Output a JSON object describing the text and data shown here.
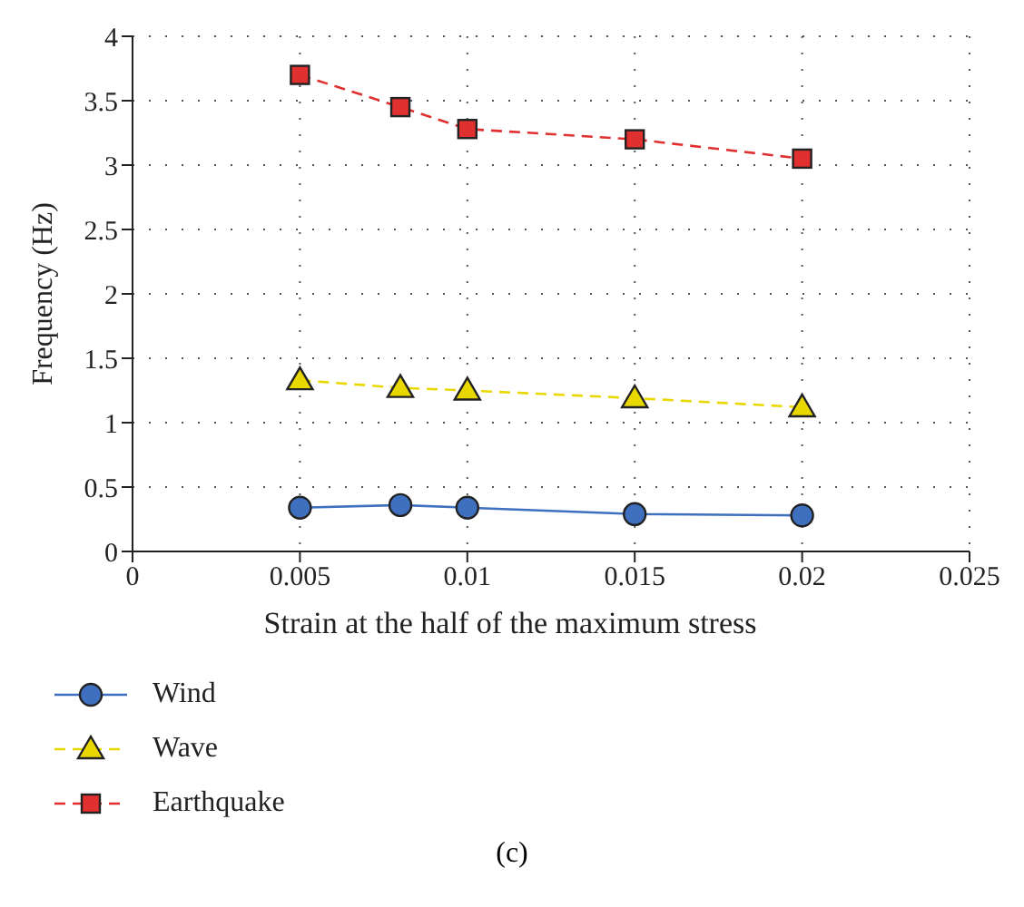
{
  "chart_data": {
    "type": "line",
    "xlabel": "Strain at the half of the maximum stress",
    "ylabel": "Frequency (Hz)",
    "x": [
      0.005,
      0.008,
      0.01,
      0.015,
      0.02
    ],
    "series": [
      {
        "name": "Wind",
        "color": "#3f6fbf",
        "marker": "circle",
        "line_style": "solid",
        "values": [
          0.34,
          0.36,
          0.34,
          0.29,
          0.28
        ]
      },
      {
        "name": "Wave",
        "color": "#e8d800",
        "marker": "triangle",
        "line_style": "dashed",
        "values": [
          1.33,
          1.27,
          1.25,
          1.19,
          1.12
        ]
      },
      {
        "name": "Earthquake",
        "color": "#e03030",
        "marker": "square",
        "line_style": "dashed",
        "values": [
          3.7,
          3.45,
          3.28,
          3.2,
          3.05
        ]
      }
    ],
    "xlim": [
      0,
      0.025
    ],
    "xticks": [
      0,
      0.005,
      0.01,
      0.015,
      0.02,
      0.025
    ],
    "ylim": [
      0,
      4
    ],
    "yticks": [
      0,
      0.5,
      1,
      1.5,
      2,
      2.5,
      3,
      3.5,
      4
    ],
    "grid": true,
    "legend": "bottom",
    "annotations": [
      "(c)"
    ]
  }
}
